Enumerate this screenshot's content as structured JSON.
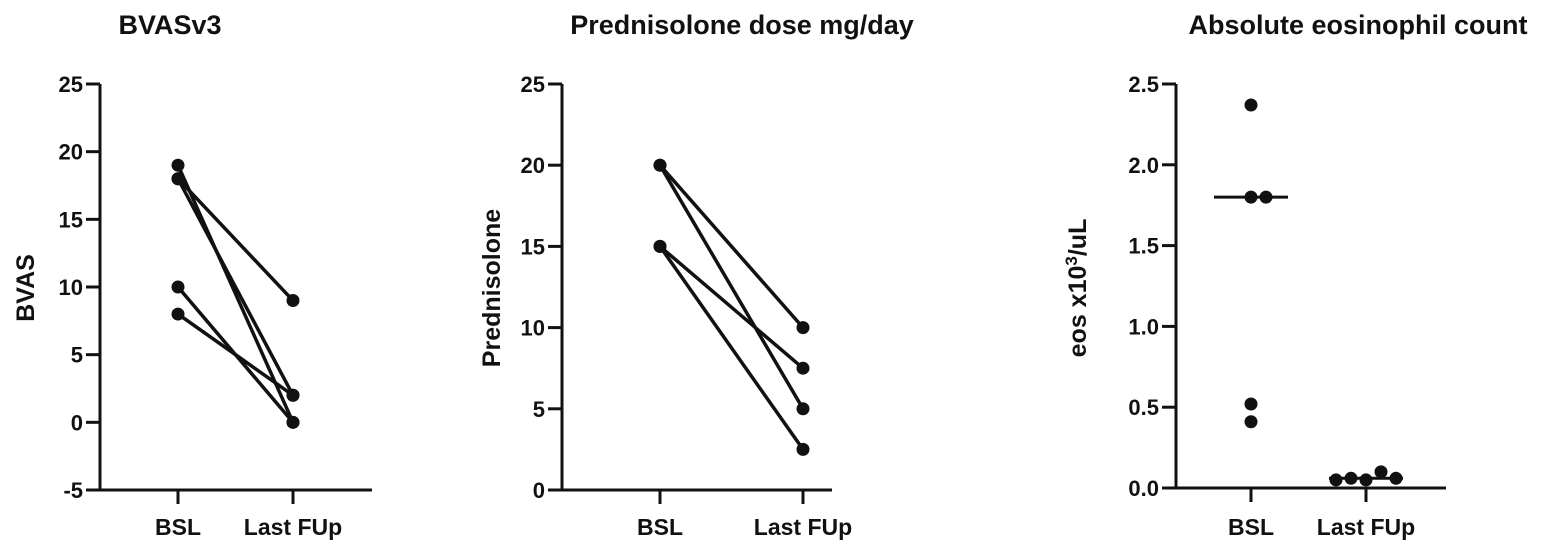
{
  "chart_data": [
    {
      "type": "line",
      "title": "BVASv3",
      "ylabel": "BVAS",
      "xlabel": "",
      "categories": [
        "BSL",
        "Last FUp"
      ],
      "ylim": [
        -5,
        25
      ],
      "yticks": [
        "-5",
        "0",
        "5",
        "10",
        "15",
        "20",
        "25"
      ],
      "grid": false,
      "pairs": [
        [
          19,
          0
        ],
        [
          18,
          9
        ],
        [
          18,
          2
        ],
        [
          10,
          0
        ],
        [
          8,
          2
        ]
      ]
    },
    {
      "type": "line",
      "title": "Prednisolone dose mg/day",
      "ylabel": "Prednisolone",
      "xlabel": "",
      "categories": [
        "BSL",
        "Last FUp"
      ],
      "ylim": [
        0,
        25
      ],
      "yticks": [
        "0",
        "5",
        "10",
        "15",
        "20",
        "25"
      ],
      "grid": false,
      "pairs": [
        [
          20,
          10
        ],
        [
          20,
          5
        ],
        [
          15,
          7.5
        ],
        [
          15,
          2.5
        ]
      ]
    },
    {
      "type": "scatter",
      "title": "Absolute eosinophil count",
      "ylabel": "eos x10",
      "ylabel_sup": "3",
      "ylabel_suffix": "/uL",
      "xlabel": "",
      "categories": [
        "BSL",
        "Last FUp"
      ],
      "ylim": [
        0,
        2.5
      ],
      "yticks": [
        "0.0",
        "0.5",
        "1.0",
        "1.5",
        "2.0",
        "2.5"
      ],
      "grid": false,
      "groups": [
        {
          "values": [
            2.37,
            1.8,
            1.8,
            0.52,
            0.41
          ],
          "median": 1.8
        },
        {
          "values": [
            0.05,
            0.1,
            0.06,
            0.06,
            0.05
          ],
          "median": 0.06
        }
      ]
    }
  ]
}
